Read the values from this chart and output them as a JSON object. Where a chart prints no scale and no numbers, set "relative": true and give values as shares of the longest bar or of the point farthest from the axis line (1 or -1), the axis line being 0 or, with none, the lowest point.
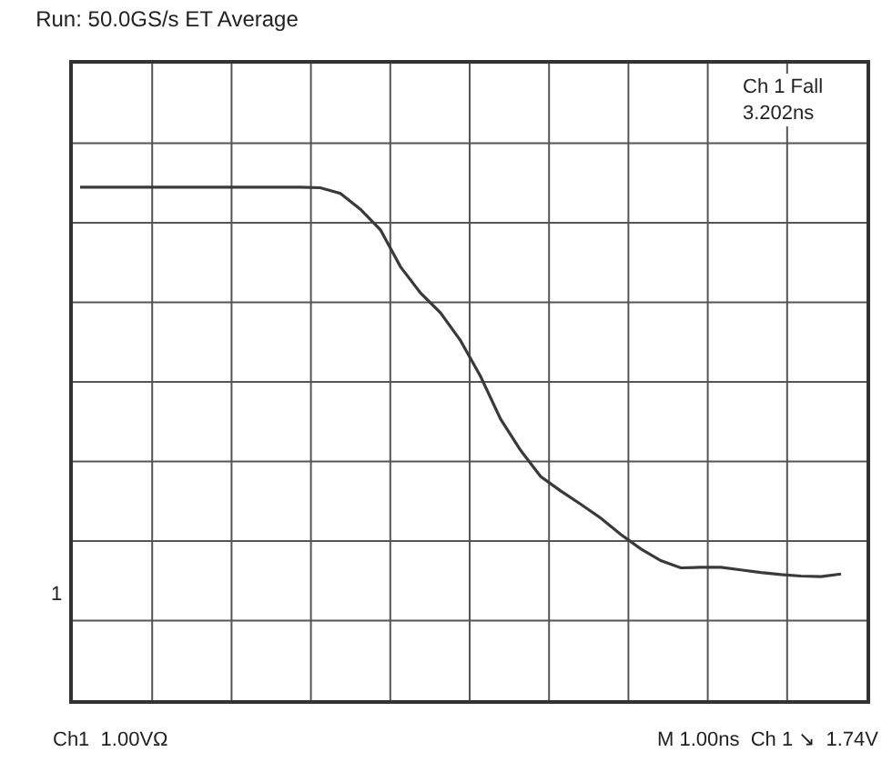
{
  "chart_data": {
    "type": "line",
    "title": "Run: 50.0GS/s ET Average",
    "relative": true,
    "grid": true,
    "marker": "none",
    "line_style": "solid",
    "categories": [
      null,
      null,
      null,
      null,
      null,
      null,
      null,
      null,
      null,
      null,
      null,
      null,
      null,
      null,
      null,
      null,
      null,
      null,
      null,
      null,
      null,
      null,
      null,
      null,
      null,
      null,
      null,
      null,
      null,
      null,
      null,
      null,
      null,
      null,
      null,
      null,
      null,
      null,
      null
    ],
    "series": [
      {
        "color": "#3a3a3a",
        "values": [
          1,
          1,
          1,
          1,
          1,
          1,
          1,
          1,
          1,
          1,
          1,
          1,
          0.999,
          0.988,
          0.957,
          0.917,
          0.845,
          0.794,
          0.755,
          0.701,
          0.631,
          0.548,
          0.487,
          0.436,
          0.408,
          0.382,
          0.355,
          0.323,
          0.295,
          0.272,
          0.258,
          0.259,
          0.259,
          0.254,
          0.249,
          0.245,
          0.242,
          0.241,
          0.246
        ]
      }
    ],
    "annotations": [
      "Ch 1 Fall\n3.202ns",
      "Ch1  1.00VΩ",
      "M 1.00ns  Ch 1 ↘  1.74V",
      "1"
    ]
  }
}
